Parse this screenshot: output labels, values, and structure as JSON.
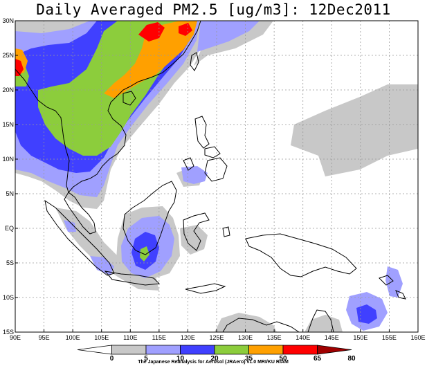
{
  "title": "Daily Averaged PM2.5 [ug/m3]: 12Dec2011",
  "map": {
    "lon_labels": [
      "90E",
      "95E",
      "100E",
      "105E",
      "110E",
      "115E",
      "120E",
      "125E",
      "130E",
      "135E",
      "140E",
      "145E",
      "150E",
      "155E",
      "160E"
    ],
    "lat_labels": [
      "30N",
      "25N",
      "20N",
      "15N",
      "10N",
      "5N",
      "EQ",
      "5S",
      "10S",
      "15S"
    ]
  },
  "colorbar": {
    "levels": [
      "0",
      "5",
      "10",
      "20",
      "35",
      "50",
      "65",
      "80"
    ],
    "colors": [
      "#ffffff",
      "#c8c8c8",
      "#a0a0ff",
      "#4040ff",
      "#8ccd3c",
      "#ffa000",
      "#ff0000",
      "#a00000"
    ]
  },
  "credit": "The Japanese Reanalysis for Aerosol (JRAero) v1.0 MRI/KU RIAM"
}
